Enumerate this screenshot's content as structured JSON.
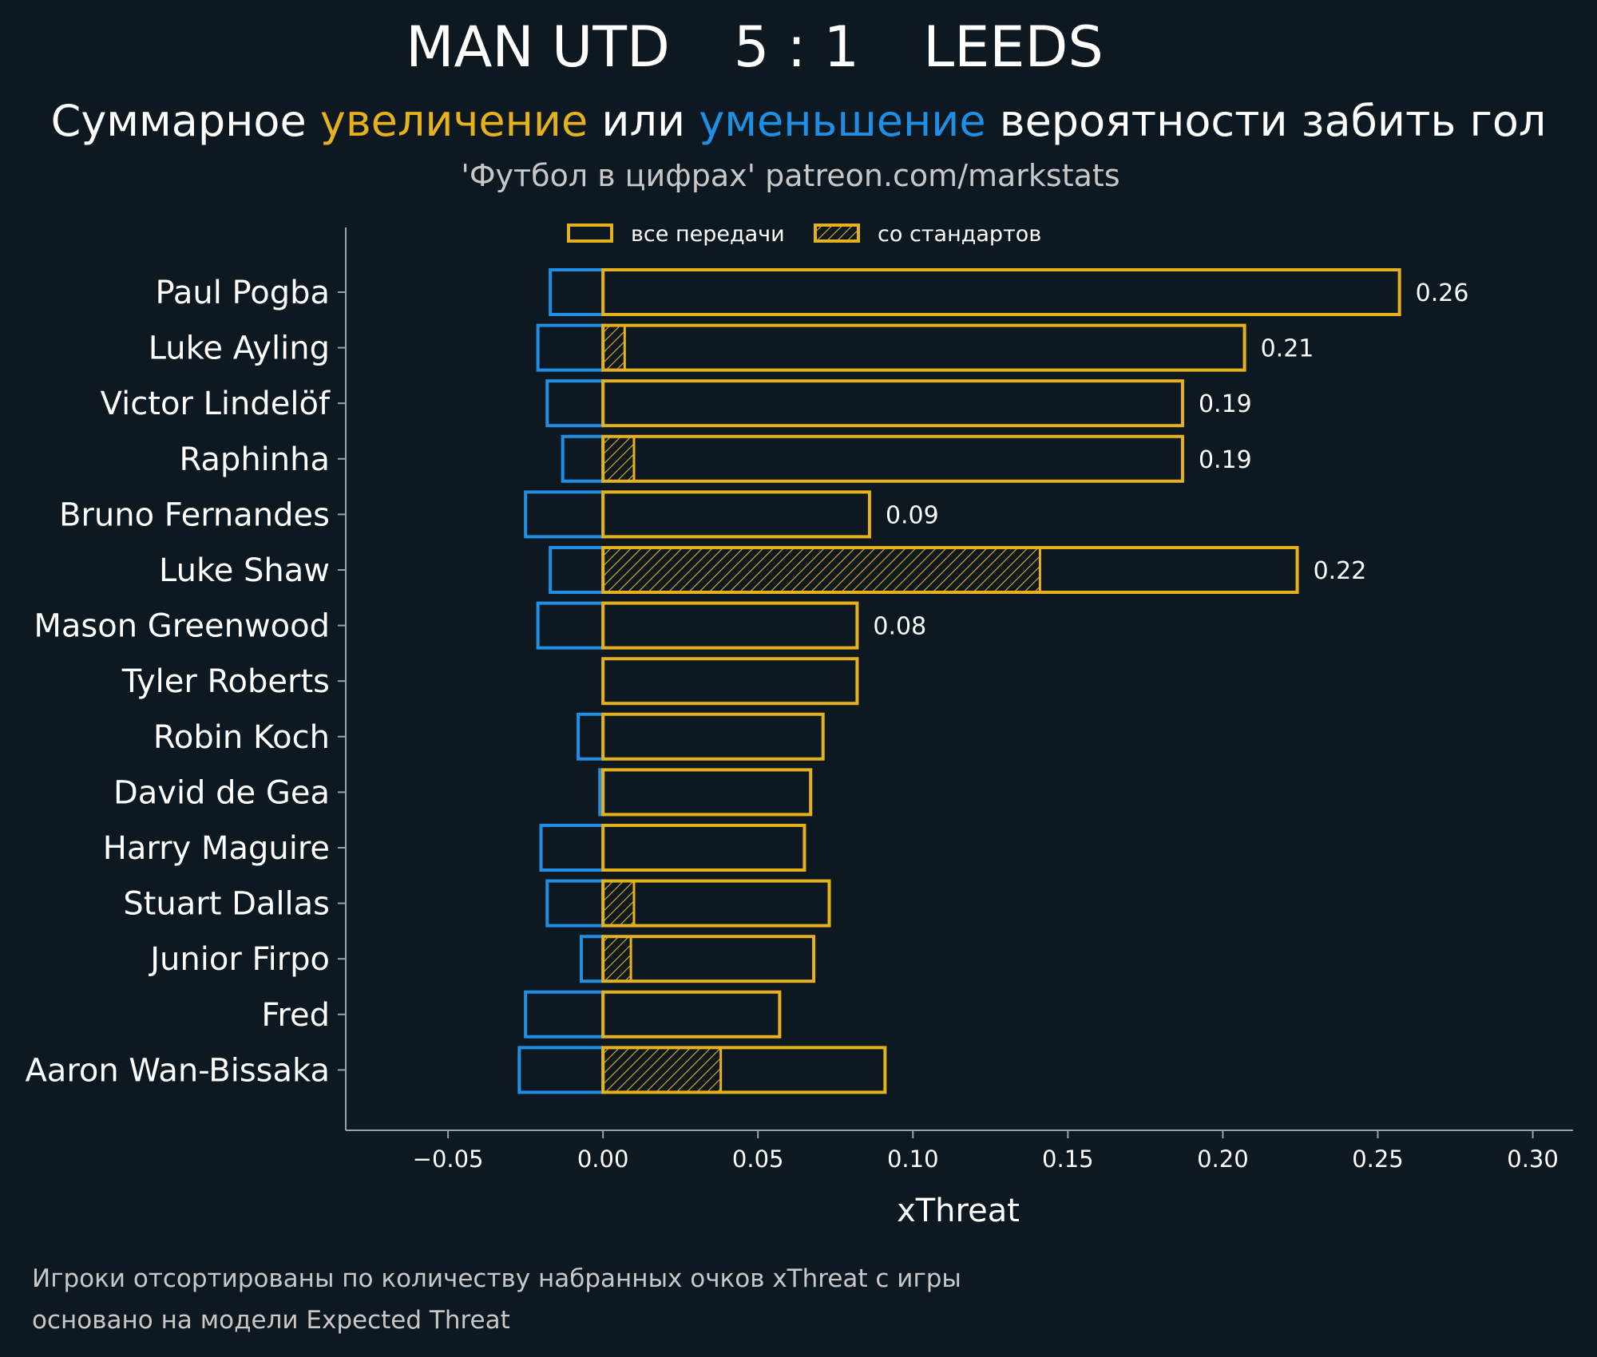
{
  "header": {
    "home_team": "MAN UTD",
    "score": "5 : 1",
    "away_team": "LEEDS",
    "subtitle_parts": {
      "p1": "Суммарное ",
      "increase": "увеличение",
      "p2": " или ",
      "decrease": "уменьшение",
      "p3": " вероятности забить гол"
    },
    "credit": "'Футбол в цифрах' patreon.com/markstats"
  },
  "colors": {
    "background": "#0e1821",
    "positive": "#e5b21e",
    "negative": "#1e8fe5",
    "axis": "#9aa3ab",
    "text": "#ffffff"
  },
  "chart_data": {
    "type": "bar",
    "orientation": "horizontal",
    "xlabel": "xThreat",
    "xlim": [
      -0.083,
      0.313
    ],
    "xticks": [
      -0.05,
      0.0,
      0.05,
      0.1,
      0.15,
      0.2,
      0.25,
      0.3
    ],
    "xtick_labels": [
      "−0.05",
      "0.00",
      "0.05",
      "0.10",
      "0.15",
      "0.20",
      "0.25",
      "0.30"
    ],
    "legend": {
      "position": "top",
      "entries": [
        {
          "label": "все передачи",
          "style": "outline"
        },
        {
          "label": "со стандартов",
          "style": "hatched"
        }
      ]
    },
    "players": [
      {
        "name": "Paul Pogba",
        "negative": -0.017,
        "positive": 0.257,
        "set_piece": 0.0,
        "label": "0.26"
      },
      {
        "name": "Luke Ayling",
        "negative": -0.021,
        "positive": 0.207,
        "set_piece": 0.007,
        "label": "0.21"
      },
      {
        "name": "Victor Lindelöf",
        "negative": -0.018,
        "positive": 0.187,
        "set_piece": 0.0,
        "label": "0.19"
      },
      {
        "name": "Raphinha",
        "negative": -0.013,
        "positive": 0.187,
        "set_piece": 0.01,
        "label": "0.19"
      },
      {
        "name": "Bruno Fernandes",
        "negative": -0.025,
        "positive": 0.086,
        "set_piece": 0.0,
        "label": "0.09"
      },
      {
        "name": "Luke Shaw",
        "negative": -0.017,
        "positive": 0.224,
        "set_piece": 0.141,
        "label": "0.22"
      },
      {
        "name": "Mason Greenwood",
        "negative": -0.021,
        "positive": 0.082,
        "set_piece": 0.0,
        "label": "0.08"
      },
      {
        "name": "Tyler Roberts",
        "negative": 0.0,
        "positive": 0.082,
        "set_piece": 0.0,
        "label": ""
      },
      {
        "name": "Robin Koch",
        "negative": -0.008,
        "positive": 0.071,
        "set_piece": 0.0,
        "label": ""
      },
      {
        "name": "David de Gea",
        "negative": -0.001,
        "positive": 0.067,
        "set_piece": 0.0,
        "label": ""
      },
      {
        "name": "Harry Maguire",
        "negative": -0.02,
        "positive": 0.065,
        "set_piece": 0.0,
        "label": ""
      },
      {
        "name": "Stuart Dallas",
        "negative": -0.018,
        "positive": 0.073,
        "set_piece": 0.01,
        "label": ""
      },
      {
        "name": "Junior Firpo",
        "negative": -0.007,
        "positive": 0.068,
        "set_piece": 0.009,
        "label": ""
      },
      {
        "name": "Fred",
        "negative": -0.025,
        "positive": 0.057,
        "set_piece": 0.0,
        "label": ""
      },
      {
        "name": "Aaron Wan-Bissaka",
        "negative": -0.027,
        "positive": 0.091,
        "set_piece": 0.038,
        "label": ""
      }
    ]
  },
  "footnotes": {
    "line1": "Игроки отсортированы по количеству набранных очков xThreat с игры",
    "line2": "основано на модели Expected Threat"
  }
}
